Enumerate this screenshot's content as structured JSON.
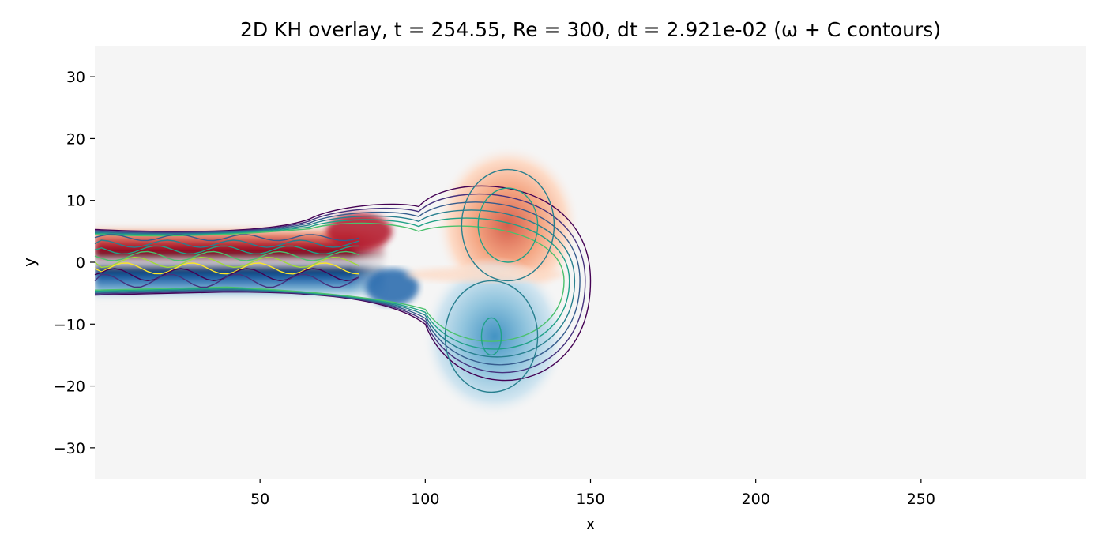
{
  "chart_data": {
    "type": "heatmap",
    "title": "2D KH overlay, t =  254.55, Re = 300, dt = 2.921e-02 (ω + C contours)",
    "xlabel": "x",
    "ylabel": "y",
    "xlim": [
      0,
      300
    ],
    "ylim": [
      -35,
      35
    ],
    "xticks": [
      50,
      100,
      150,
      200,
      250
    ],
    "yticks": [
      30,
      20,
      10,
      0,
      -10,
      -20,
      -30
    ],
    "xtick_labels": [
      "50",
      "100",
      "150",
      "200",
      "250"
    ],
    "ytick_labels": [
      "30",
      "20",
      "10",
      "0",
      "−10",
      "−20",
      "−30"
    ],
    "grid": false,
    "colormap_vorticity": "RdBu_r",
    "colormap_contours": "viridis",
    "background_color": "#f5f5f5",
    "features": {
      "shear_layer": {
        "x": [
          0,
          80
        ],
        "y_half_width": 5
      },
      "positive_vortex_center": [
        125,
        6
      ],
      "negative_vortex_center": [
        120,
        -12
      ],
      "dipole_outer_extent": {
        "x": [
          100,
          150
        ],
        "y": [
          -23,
          17
        ]
      }
    }
  }
}
